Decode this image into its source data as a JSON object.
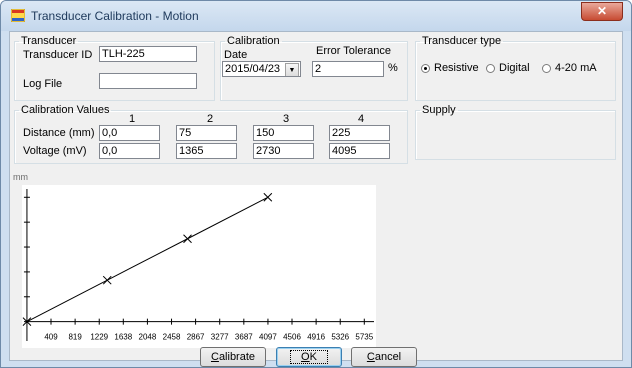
{
  "window": {
    "title": "Transducer Calibration - Motion",
    "close_glyph": "✕"
  },
  "transducer": {
    "legend": "Transducer",
    "id_label": "Transducer ID",
    "id_value": "TLH-225",
    "logfile_label": "Log File",
    "logfile_value": ""
  },
  "calibration": {
    "legend": "Calibration",
    "date_label": "Date",
    "date_value": "2015/04/23",
    "tolerance_label": "Error Tolerance",
    "tolerance_value": "2",
    "tolerance_unit": "%"
  },
  "transducer_type": {
    "legend": "Transducer type",
    "options": [
      "Resistive",
      "Digital",
      "4-20 mA"
    ],
    "selected": "Resistive"
  },
  "calibration_values": {
    "legend": "Calibration Values",
    "columns": [
      "1",
      "2",
      "3",
      "4"
    ],
    "distance_label": "Distance (mm)",
    "distance": [
      "0,0",
      "75",
      "150",
      "225"
    ],
    "voltage_label": "Voltage (mV)",
    "voltage": [
      "0,0",
      "1365",
      "2730",
      "4095"
    ]
  },
  "supply": {
    "legend": "Supply"
  },
  "buttons": {
    "calibrate": {
      "pre": "",
      "key": "C",
      "post": "alibrate"
    },
    "ok": {
      "pre": "",
      "key": "O",
      "post": "K"
    },
    "cancel": {
      "pre": "",
      "key": "C",
      "post": "ancel"
    }
  },
  "chart_data": {
    "type": "line",
    "ylabel": "mm",
    "yticks": [
      45,
      90,
      135,
      180,
      225
    ],
    "xticks": [
      409,
      819,
      1229,
      1638,
      2048,
      2458,
      2867,
      3277,
      3687,
      4097,
      4506,
      4916,
      5326,
      5735
    ],
    "xlim": [
      -50,
      5900
    ],
    "ylim": [
      -35,
      240
    ],
    "series": [
      {
        "x": [
          0,
          1365,
          2730,
          4095
        ],
        "y": [
          0,
          75,
          150,
          225
        ],
        "marker": "x"
      }
    ],
    "line_color": "#000000"
  }
}
